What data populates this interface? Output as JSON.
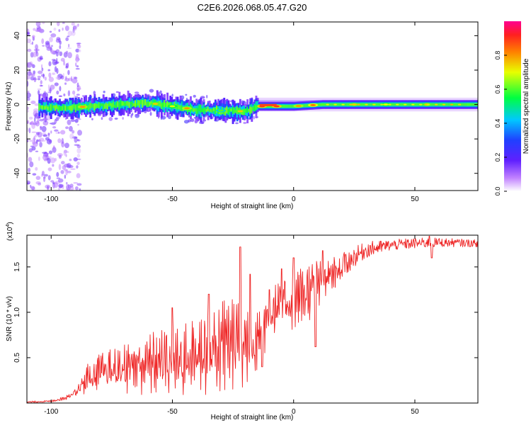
{
  "title": "C2E6.2026.068.05.47.G20",
  "chart_data": [
    {
      "type": "heatmap",
      "title": "C2E6.2026.068.05.47.G20",
      "xlabel": "Height of straight line (km)",
      "ylabel": "Frequency (Hz)",
      "xlim": [
        -110,
        76
      ],
      "ylim": [
        -50,
        48
      ],
      "xticks": [
        -100,
        -50,
        0,
        50
      ],
      "yticks": [
        -40,
        -20,
        0,
        20,
        40
      ],
      "xtick_labels": [
        "-100",
        "-50",
        "0",
        "50"
      ],
      "ytick_labels": [
        "-40",
        "-20",
        "0",
        "20",
        "40"
      ],
      "colorbar": {
        "label": "Normalized spectral amplitude",
        "range": [
          0,
          1
        ],
        "ticks": [
          0,
          0.2,
          0.4,
          0.6,
          0.8
        ],
        "tick_labels": [
          "0.0",
          "0.2",
          "0.4",
          "0.6",
          "0.8"
        ],
        "colors": [
          "#ffffff",
          "#a040ff",
          "#2020ff",
          "#00d0ff",
          "#00ff60",
          "#ffff00",
          "#ff8000",
          "#ff2020",
          "#ff00a0"
        ]
      },
      "ridge": {
        "center_freq_hz": [
          [
            -110,
            -1
          ],
          [
            -95,
            -2
          ],
          [
            -70,
            0
          ],
          [
            -60,
            1
          ],
          [
            -40,
            -3
          ],
          [
            -20,
            -4
          ],
          [
            -15,
            -1
          ],
          [
            0,
            -1
          ],
          [
            12,
            0
          ],
          [
            76,
            0
          ]
        ],
        "scatter_until_km": -90,
        "description_points": [
          {
            "x": -87,
            "amp": 0.8
          },
          {
            "x": -57,
            "amp": 0.75
          },
          {
            "x": -50,
            "amp": 0.7
          },
          {
            "x": -44,
            "amp": 0.8
          },
          {
            "x": -30,
            "amp": 0.6
          },
          {
            "x": -22,
            "amp": 0.75
          },
          {
            "x": -13,
            "amp": 0.9
          },
          {
            "x": -7,
            "amp": 0.9
          },
          {
            "x": 2,
            "amp": 0.8
          },
          {
            "x": 8,
            "amp": 0.85
          },
          {
            "x": 25,
            "amp": 0.75
          },
          {
            "x": 38,
            "amp": 0.7
          },
          {
            "x": 55,
            "amp": 0.75
          }
        ]
      }
    },
    {
      "type": "line",
      "title": "",
      "xlabel": "Height of straight line (km)",
      "ylabel": "SNR (10 * v/v)",
      "scale_note": "(x10",
      "scale_exp": "4",
      "scale_close": ")",
      "xlim": [
        -110,
        76
      ],
      "ylim": [
        0,
        1.85
      ],
      "xticks": [
        -100,
        -50,
        0,
        50
      ],
      "yticks": [
        0.5,
        1.0,
        1.5
      ],
      "xtick_labels": [
        "-100",
        "-50",
        "0",
        "50"
      ],
      "ytick_labels": [
        "0.5",
        "1.0",
        "1.5"
      ],
      "color": "#ee2222",
      "series": [
        {
          "name": "SNR",
          "envelope_x": [
            -110,
            -100,
            -95,
            -90,
            -85,
            -80,
            -75,
            -70,
            -65,
            -60,
            -55,
            -50,
            -45,
            -40,
            -35,
            -30,
            -25,
            -20,
            -15,
            -10,
            -5,
            0,
            5,
            10,
            15,
            20,
            25,
            30,
            40,
            50,
            60,
            76
          ],
          "envelope_lo": [
            0.0,
            0.01,
            0.03,
            0.05,
            0.08,
            0.08,
            0.08,
            0.08,
            0.09,
            0.08,
            0.06,
            0.05,
            0.05,
            0.06,
            0.06,
            0.07,
            0.06,
            0.05,
            0.35,
            0.65,
            0.8,
            0.8,
            0.85,
            1.0,
            1.2,
            1.35,
            1.5,
            1.6,
            1.68,
            1.7,
            1.72,
            1.72
          ],
          "envelope_hi": [
            0.02,
            0.03,
            0.07,
            0.2,
            0.45,
            0.55,
            0.6,
            0.7,
            0.72,
            0.78,
            0.82,
            0.85,
            0.9,
            1.0,
            1.1,
            1.15,
            1.3,
            1.2,
            1.1,
            1.3,
            1.35,
            1.45,
            1.55,
            1.6,
            1.6,
            1.65,
            1.72,
            1.78,
            1.8,
            1.82,
            1.82,
            1.8
          ],
          "spikes": [
            {
              "x": -50,
              "y": 1.05
            },
            {
              "x": -35,
              "y": 1.2
            },
            {
              "x": -22,
              "y": 1.72
            },
            {
              "x": -18,
              "y": 1.42
            },
            {
              "x": -10,
              "y": 1.25
            },
            {
              "x": -5,
              "y": 1.48
            },
            {
              "x": 0,
              "y": 1.6
            },
            {
              "x": 12,
              "y": 1.68
            },
            {
              "x": 56,
              "y": 1.84
            }
          ],
          "dips": [
            {
              "x": -13,
              "y": 0.4
            },
            {
              "x": 9,
              "y": 0.62
            },
            {
              "x": 57,
              "y": 1.6
            }
          ]
        }
      ]
    }
  ]
}
